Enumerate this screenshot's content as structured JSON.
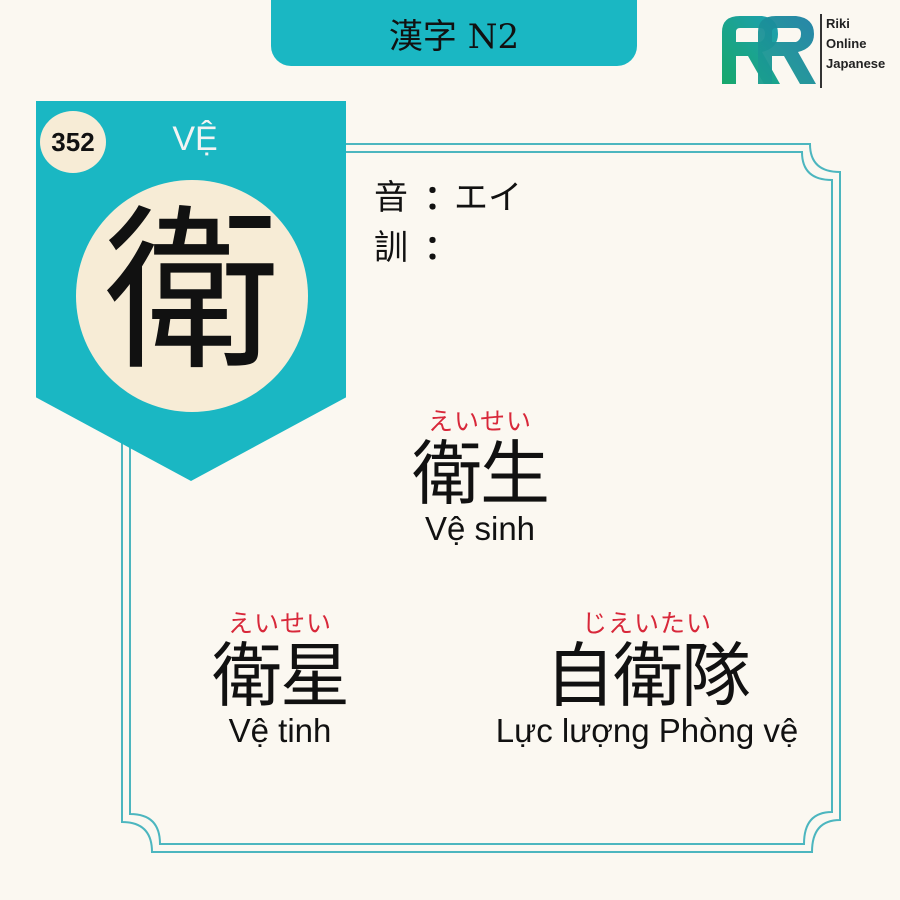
{
  "header": {
    "level_label": "漢字 N2"
  },
  "logo": {
    "line1": "Riki",
    "line2": "Online",
    "line3": "Japanese"
  },
  "kanji": {
    "number": "352",
    "han_viet": "VỆ",
    "character": "衛",
    "on_label": "音",
    "on_reading": "エイ",
    "kun_label": "訓",
    "kun_reading": "",
    "separator": "："
  },
  "vocabulary": [
    {
      "furigana": "えいせい",
      "word": "衛生",
      "meaning": "Vệ sinh"
    },
    {
      "furigana": "えいせい",
      "word": "衛星",
      "meaning": "Vệ tinh"
    },
    {
      "furigana": "じえいたい",
      "word": "自衛隊",
      "meaning": "Lực lượng Phòng vệ"
    }
  ],
  "colors": {
    "accent": "#1ab7c3",
    "frame_line": "#4cb6bf",
    "badge_circle": "#f7ecd6",
    "background": "#fbf8f1",
    "furigana": "#d8283a"
  }
}
